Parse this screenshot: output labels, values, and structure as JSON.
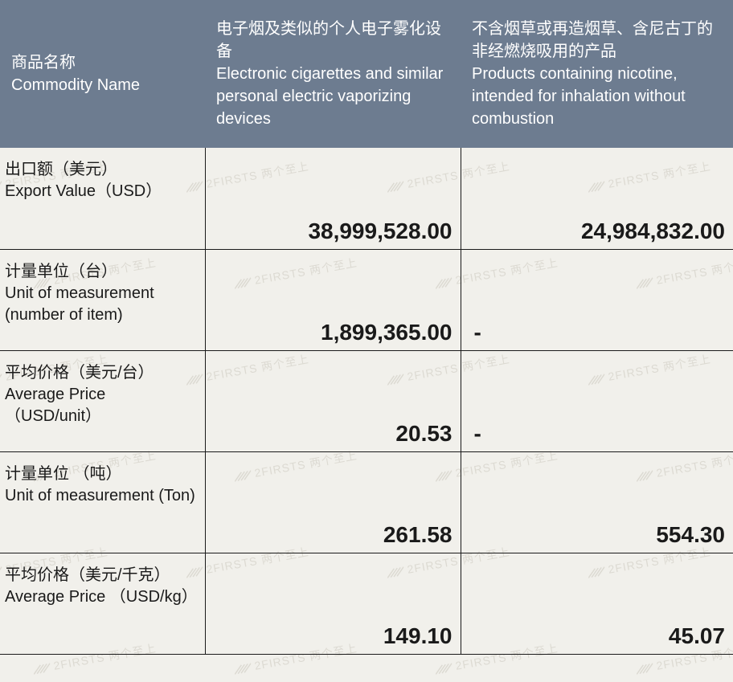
{
  "colors": {
    "header_bg": "#6d7c90",
    "header_text": "#ffffff",
    "body_bg": "#f1f0eb",
    "border": "#1a1a1a",
    "text": "#1a1a1a",
    "watermark": "#d8d5cd"
  },
  "watermark_text": "2FIRSTS 两个至上",
  "header": {
    "col0_cn": "商品名称",
    "col0_en": "Commodity Name",
    "col1_cn": "电子烟及类似的个人电子雾化设备",
    "col1_en": "Electronic cigarettes and similar personal electric vaporizing devices",
    "col2_cn": "不含烟草或再造烟草、含尼古丁的非经燃烧吸用的产品",
    "col2_en": "Products containing nicotine, intended for inhalation without combustion"
  },
  "rows": [
    {
      "label_cn": "出口额（美元）",
      "label_en": " Export Value（USD）",
      "v1": "38,999,528.00",
      "v2": "24,984,832.00",
      "v2_dash": false
    },
    {
      "label_cn": "计量单位（台）",
      "label_en": "Unit of measurement (number of item)",
      "v1": "1,899,365.00",
      "v2": "-",
      "v2_dash": true
    },
    {
      "label_cn": "平均价格（美元/台）",
      "label_en": "Average Price （USD/unit）",
      "v1": "20.53",
      "v2": "-",
      "v2_dash": true
    },
    {
      "label_cn": "计量单位 （吨）",
      "label_en": "Unit of measurement (Ton)",
      "v1": "261.58",
      "v2": "554.30",
      "v2_dash": false
    },
    {
      "label_cn": "平均价格（美元/千克）",
      "label_en": "Average Price （USD/kg）",
      "v1": "149.10",
      "v2": "45.07",
      "v2_dash": false
    }
  ]
}
